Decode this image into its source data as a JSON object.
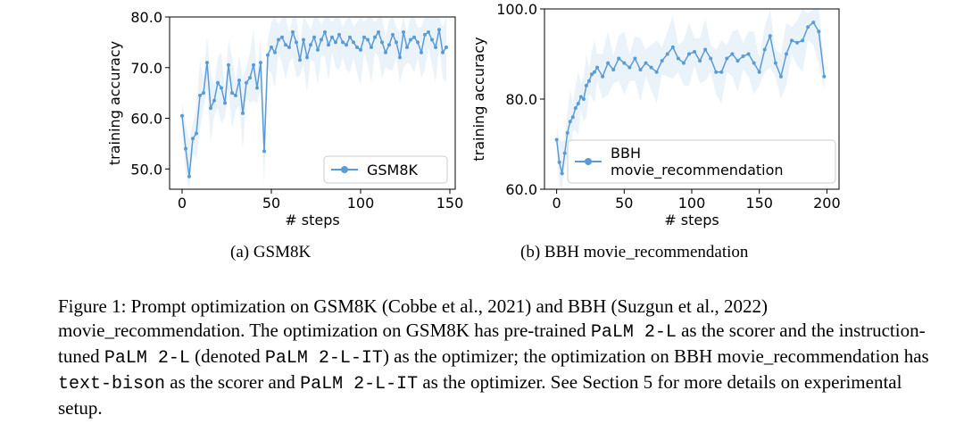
{
  "chart_data": [
    {
      "type": "line",
      "title": "GSM8K",
      "xlabel": "# steps",
      "ylabel": "training accuracy",
      "xlim": [
        -7,
        153
      ],
      "ylim": [
        46,
        80
      ],
      "xticks": [
        0,
        50,
        100,
        150
      ],
      "yticks": [
        50,
        60,
        70,
        80
      ],
      "ytick_labels": [
        "50.0",
        "60.0",
        "70.0",
        "80.0"
      ],
      "legend": {
        "entries": [
          "GSM8K"
        ],
        "position": "lower-right"
      },
      "color": "#5b9bd5",
      "series": [
        {
          "name": "GSM8K",
          "x": [
            0,
            2,
            4,
            6,
            8,
            10,
            12,
            14,
            16,
            18,
            20,
            22,
            24,
            26,
            28,
            30,
            32,
            34,
            36,
            38,
            40,
            42,
            44,
            46,
            48,
            50,
            52,
            54,
            56,
            58,
            60,
            62,
            64,
            66,
            68,
            70,
            72,
            74,
            76,
            78,
            80,
            82,
            84,
            86,
            88,
            90,
            92,
            94,
            96,
            98,
            100,
            102,
            104,
            106,
            108,
            110,
            112,
            114,
            116,
            118,
            120,
            122,
            124,
            126,
            128,
            130,
            132,
            134,
            136,
            138,
            140,
            142,
            144,
            146,
            148
          ],
          "y": [
            60.5,
            54,
            48.5,
            56,
            57,
            64.5,
            65,
            71,
            62,
            63.5,
            67,
            66,
            63,
            70.5,
            65,
            64.5,
            67.5,
            61,
            67,
            68,
            70.5,
            66,
            71,
            53.5,
            72.5,
            74,
            73,
            75.5,
            76,
            74.5,
            74,
            77,
            75,
            71.5,
            75.5,
            72,
            74.5,
            76,
            73.5,
            75.5,
            77,
            74.5,
            76,
            75,
            76.5,
            75,
            74.5,
            76,
            75,
            74,
            73.5,
            76,
            75.5,
            74,
            76,
            77,
            75,
            73,
            74.5,
            76.5,
            75,
            72,
            77,
            74,
            75.5,
            76,
            75,
            73,
            76.5,
            77,
            75.5,
            74,
            77.5,
            73,
            74
          ]
        }
      ]
    },
    {
      "type": "line",
      "title": "BBH movie_recommendation",
      "xlabel": "# steps",
      "ylabel": "training accuracy",
      "xlim": [
        -9,
        209
      ],
      "ylim": [
        60,
        100
      ],
      "xticks": [
        0,
        50,
        100,
        150,
        200
      ],
      "yticks": [
        60,
        80,
        100
      ],
      "ytick_labels": [
        "60.0",
        "80.0",
        "100.0"
      ],
      "legend": {
        "entries": [
          "BBH",
          "movie_recommendation"
        ],
        "position": "lower-left"
      },
      "color": "#5b9bd5",
      "series": [
        {
          "name": "BBH movie_recommendation",
          "x": [
            0,
            2,
            4,
            6,
            8,
            10,
            12,
            14,
            16,
            18,
            20,
            22,
            24,
            26,
            28,
            30,
            34,
            38,
            42,
            46,
            50,
            54,
            58,
            62,
            66,
            70,
            74,
            78,
            82,
            86,
            90,
            94,
            98,
            102,
            106,
            110,
            114,
            118,
            122,
            126,
            130,
            134,
            138,
            142,
            146,
            150,
            154,
            158,
            162,
            166,
            170,
            174,
            178,
            182,
            186,
            190,
            194,
            198
          ],
          "y": [
            71,
            66,
            63.5,
            68,
            72.5,
            75,
            76,
            78,
            79,
            80.5,
            80,
            83,
            84,
            85.5,
            86,
            87,
            85,
            88,
            86.5,
            89,
            88,
            87,
            89,
            86.5,
            88,
            87,
            86,
            88.5,
            90,
            91.5,
            89,
            88,
            90,
            90.5,
            88.5,
            91,
            89,
            86,
            86,
            89,
            90,
            88.5,
            89.5,
            90,
            88,
            86,
            91,
            94,
            88,
            85,
            90,
            93,
            92.5,
            93,
            96,
            97,
            95,
            85
          ]
        }
      ]
    }
  ],
  "subcaptions": {
    "a": "(a) GSM8K",
    "b": "(b) BBH movie_recommendation"
  },
  "caption": {
    "s1": "Figure 1: Prompt optimization on GSM8K (Cobbe et al., 2021) and BBH (Suzgun et al., 2022) movie_recommendation. The optimization on GSM8K has pre-trained ",
    "m1": "PaLM 2-L",
    "s2": " as the scorer and the instruction-tuned ",
    "m2": "PaLM 2-L",
    "s3": " (denoted ",
    "m3": "PaLM 2-L-IT",
    "s4": ") as the optimizer; the optimization on BBH movie_recommendation has ",
    "m4": "text-bison",
    "s5": " as the scorer and ",
    "m5": "PaLM 2-L-IT",
    "s6": " as the optimizer. See Section 5 for more details on experimental setup."
  }
}
